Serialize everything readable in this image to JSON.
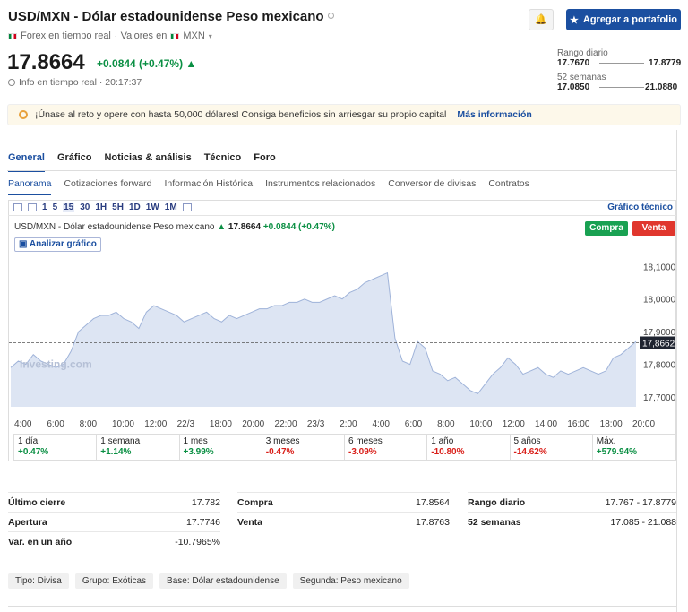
{
  "header": {
    "title": "USD/MXN - Dólar estadounidense Peso mexicano",
    "forex_label": "Forex en tiempo real",
    "values_label": "Valores en",
    "currency": "MXN",
    "alert_label": "🔔",
    "add_portfolio": "Agregar a portafolio"
  },
  "quote": {
    "price": "17.8664",
    "change": "+0.0844 (+0.47%) ▲",
    "realtime": "Info en tiempo real · 20:17:37"
  },
  "ranges": {
    "daily_label": "Rango diario",
    "daily_low": "17.7670",
    "daily_high": "17.8779",
    "weeks_label": "52 semanas",
    "weeks_low": "17.0850",
    "weeks_high": "21.0880"
  },
  "promo": {
    "text": "¡Únase al reto y opere con hasta 50,000 dólares! Consiga beneficios sin arriesgar su propio capital",
    "link": "Más información"
  },
  "tabs_main": [
    "General",
    "Gráfico",
    "Noticias & análisis",
    "Técnico",
    "Foro"
  ],
  "tabs_sub": [
    "Panorama",
    "Cotizaciones forward",
    "Información Histórica",
    "Instrumentos relacionados",
    "Conversor de divisas",
    "Contratos"
  ],
  "toolbar": {
    "intervals": [
      "1",
      "5",
      "15",
      "30",
      "1H",
      "5H",
      "1D",
      "1W",
      "1M"
    ],
    "selected": "15",
    "technical": "Gráfico técnico"
  },
  "chart_head": {
    "name": "USD/MXN - Dólar estadounidense Peso mexicano",
    "price": "17.8664",
    "change": "+0.0844 (+0.47%)",
    "buy": "Compra",
    "sell": "Venta",
    "analyze": "Analizar gráfico",
    "watermark": "Investing.com"
  },
  "chart_data": {
    "type": "area",
    "x_labels": [
      "4:00",
      "6:00",
      "8:00",
      "10:00",
      "12:00",
      "22/3",
      "18:00",
      "20:00",
      "22:00",
      "23/3",
      "2:00",
      "4:00",
      "6:00",
      "8:00",
      "10:00",
      "12:00",
      "14:00",
      "16:00",
      "18:00",
      "20:00"
    ],
    "y_ticks": [
      "18,1000",
      "18,0000",
      "17,9000",
      "17,8000",
      "17,7000"
    ],
    "ylim": [
      17.67,
      18.12
    ],
    "last_price_label": "17,8662",
    "last_price": 17.8662,
    "values": [
      17.79,
      17.81,
      17.8,
      17.83,
      17.81,
      17.8,
      17.79,
      17.8,
      17.84,
      17.9,
      17.92,
      17.94,
      17.95,
      17.95,
      17.96,
      17.94,
      17.93,
      17.91,
      17.96,
      17.98,
      17.97,
      17.96,
      17.95,
      17.93,
      17.94,
      17.95,
      17.96,
      17.94,
      17.93,
      17.95,
      17.94,
      17.95,
      17.96,
      17.97,
      17.97,
      17.98,
      17.98,
      17.99,
      17.99,
      18.0,
      17.99,
      17.99,
      18.0,
      18.01,
      18.0,
      18.02,
      18.03,
      18.05,
      18.06,
      18.07,
      18.08,
      17.88,
      17.81,
      17.8,
      17.87,
      17.85,
      17.78,
      17.77,
      17.75,
      17.76,
      17.74,
      17.72,
      17.71,
      17.74,
      17.77,
      17.79,
      17.82,
      17.8,
      17.77,
      17.78,
      17.79,
      17.77,
      17.76,
      17.78,
      17.77,
      17.78,
      17.79,
      17.78,
      17.77,
      17.78,
      17.82,
      17.83,
      17.85,
      17.87
    ]
  },
  "performance": [
    {
      "label": "1 día",
      "value": "+0.47%",
      "dir": "up"
    },
    {
      "label": "1 semana",
      "value": "+1.14%",
      "dir": "up"
    },
    {
      "label": "1 mes",
      "value": "+3.99%",
      "dir": "up"
    },
    {
      "label": "3 meses",
      "value": "-0.47%",
      "dir": "down"
    },
    {
      "label": "6 meses",
      "value": "-3.09%",
      "dir": "down"
    },
    {
      "label": "1 año",
      "value": "-10.80%",
      "dir": "down"
    },
    {
      "label": "5 años",
      "value": "-14.62%",
      "dir": "down"
    },
    {
      "label": "Máx.",
      "value": "+579.94%",
      "dir": "up"
    }
  ],
  "stats": {
    "col1": [
      {
        "k": "Último cierre",
        "v": "17.782"
      },
      {
        "k": "Apertura",
        "v": "17.7746"
      },
      {
        "k": "Var. en un año",
        "v": "-10.7965%"
      }
    ],
    "col2": [
      {
        "k": "Compra",
        "v": "17.8564"
      },
      {
        "k": "Venta",
        "v": "17.8763"
      }
    ],
    "col3": [
      {
        "k": "Rango diario",
        "v": "17.767 - 17.8779"
      },
      {
        "k": "52 semanas",
        "v": "17.085 - 21.088"
      }
    ]
  },
  "chips": [
    "Tipo: Divisa",
    "Grupo: Exóticas",
    "Base: Dólar estadounidense",
    "Segunda: Peso mexicano"
  ],
  "colors": {
    "accent": "#1b4fa0",
    "up": "#0a8f43",
    "down": "#d91e18",
    "area": "#dde5f3",
    "line": "#9fb3d9"
  }
}
